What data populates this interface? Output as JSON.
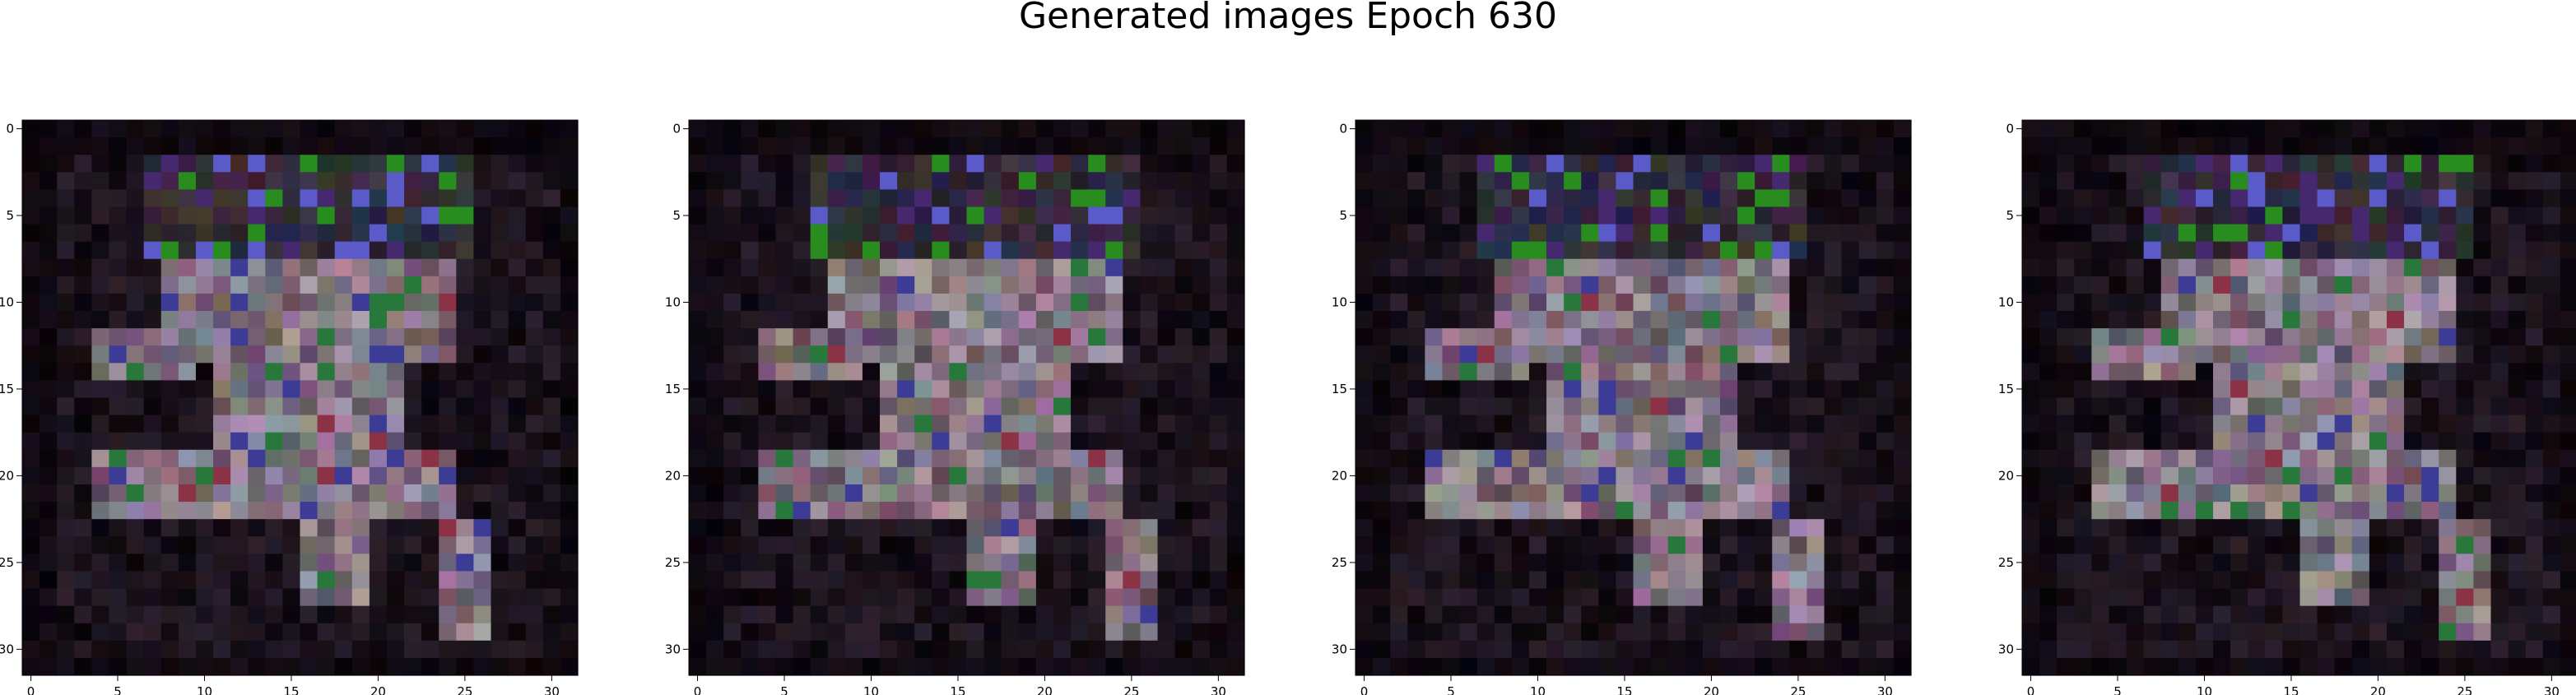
{
  "title": "Generated images Epoch 630",
  "panels": [
    {
      "name": "generated-image-1"
    },
    {
      "name": "generated-image-2"
    },
    {
      "name": "generated-image-3"
    },
    {
      "name": "generated-image-4"
    }
  ],
  "axes": {
    "x_ticks": [
      0,
      5,
      10,
      15,
      20,
      25,
      30
    ],
    "y_ticks": [
      0,
      5,
      10,
      15,
      20,
      25,
      30
    ],
    "image_size": 32
  },
  "colors": {
    "background": "#050304",
    "body": "#7a6a7a",
    "accent_green": "#2a8a2a",
    "accent_blue": "#3a3aa0",
    "accent_red": "#8a2a3a"
  }
}
